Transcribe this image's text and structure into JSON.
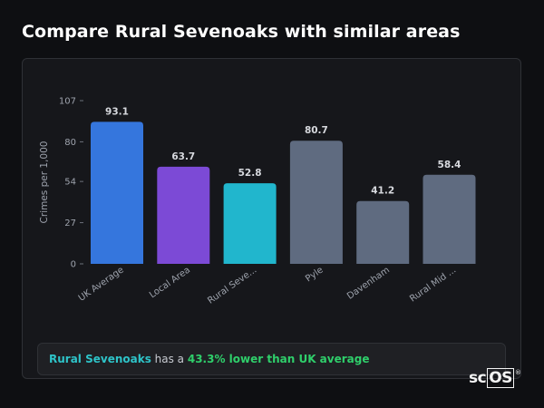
{
  "header": {
    "title": "Compare Rural Sevenoaks with similar areas"
  },
  "chart_data": {
    "type": "bar",
    "ylabel": "Crimes per 1,000",
    "xlabel": "",
    "ylim": [
      0,
      107
    ],
    "yticks": [
      0,
      27,
      54,
      80,
      107
    ],
    "grid": false,
    "categories": [
      "UK Average",
      "Local Area",
      "Rural Seve...",
      "Pyle",
      "Davenham",
      "Rural Mid ..."
    ],
    "values": [
      93.1,
      63.7,
      52.8,
      80.7,
      41.2,
      58.4
    ],
    "value_labels": [
      "93.1",
      "63.7",
      "52.8",
      "80.7",
      "41.2",
      "58.4"
    ],
    "colors": [
      "#3576dd",
      "#7c4ad6",
      "#21b6cd",
      "#5f6b80",
      "#5f6b80",
      "#5f6b80"
    ]
  },
  "summary": {
    "area": "Rural Sevenoaks",
    "middle": " has a ",
    "difference": "43.3% lower than UK average"
  },
  "logo": {
    "prefix": "sc",
    "boxed": "OS",
    "mark": "®"
  },
  "colors": {
    "background": "#0e0f12",
    "card": "#16171b",
    "accent_area": "#2ec4c9",
    "accent_positive": "#2fcf6b"
  }
}
